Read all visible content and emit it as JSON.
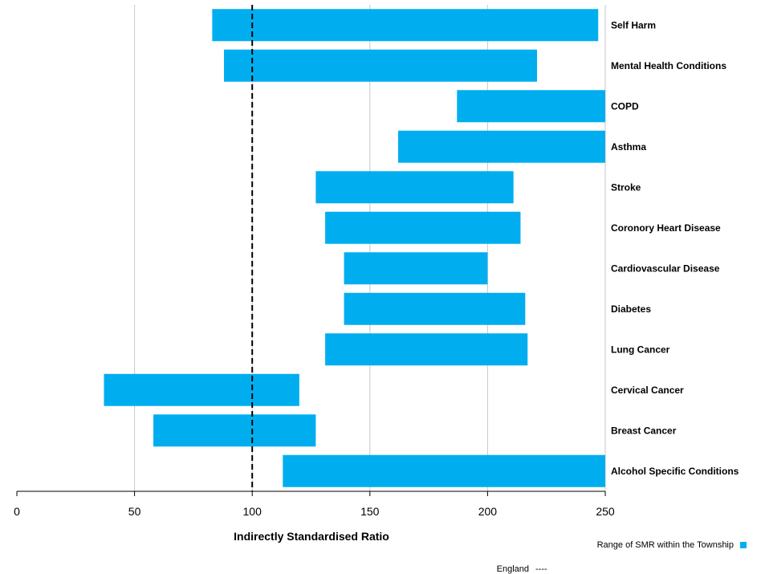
{
  "chart_data": {
    "type": "bar",
    "orientation": "horizontal",
    "subtype": "floating-range",
    "title": "",
    "xlabel": "Indirectly Standardised  Ratio",
    "ylabel": "",
    "xlim": [
      0,
      250
    ],
    "xticks": [
      0,
      50,
      100,
      150,
      200,
      250
    ],
    "grid": "vertical",
    "bar_color": "#00AEEF",
    "categories": [
      "Self Harm",
      "Mental Health Conditions",
      "COPD",
      "Asthma",
      "Stroke",
      "Coronory Heart Disease",
      "Cardiovascular Disease",
      "Diabetes",
      "Lung Cancer",
      "Cervical Cancer",
      "Breast Cancer",
      "Alcohol Specific Conditions"
    ],
    "series": [
      {
        "name": "Range of SMR within the Township",
        "ranges": [
          [
            83,
            247
          ],
          [
            88,
            221
          ],
          [
            187,
            250
          ],
          [
            162,
            250
          ],
          [
            127,
            211
          ],
          [
            131,
            214
          ],
          [
            139,
            200
          ],
          [
            139,
            216
          ],
          [
            131,
            217
          ],
          [
            37,
            120
          ],
          [
            58,
            127
          ],
          [
            113,
            250
          ]
        ]
      }
    ],
    "reference_line": {
      "name": "England",
      "value": 100,
      "style": "dashed"
    },
    "legend": {
      "position": "bottom-right",
      "range_label": "Range of SMR within the Township",
      "england_label": "England",
      "england_symbol": "----"
    }
  }
}
